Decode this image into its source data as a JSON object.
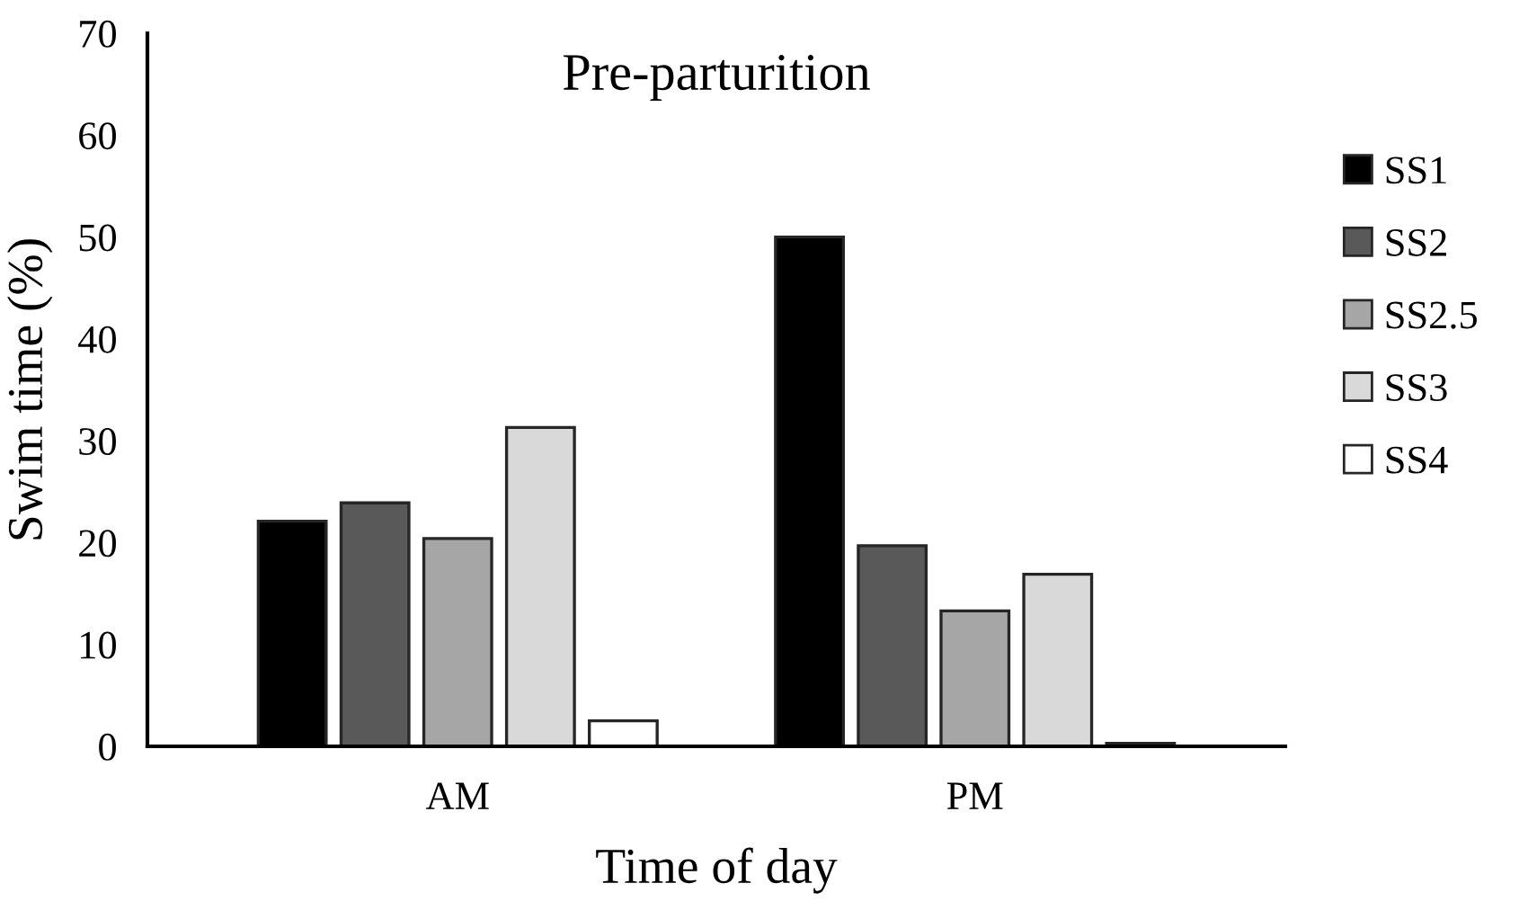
{
  "chart_data": {
    "type": "bar",
    "title": "Pre-parturition",
    "xlabel": "Time of day",
    "ylabel": "Swim time (%)",
    "categories": [
      "AM",
      "PM"
    ],
    "series": [
      {
        "name": "SS1",
        "color": "#000000",
        "values": [
          22.1,
          50
        ]
      },
      {
        "name": "SS2",
        "color": "#595959",
        "values": [
          23.9,
          19.7
        ]
      },
      {
        "name": "SS2.5",
        "color": "#a6a6a6",
        "values": [
          20.4,
          13.3
        ]
      },
      {
        "name": "SS3",
        "color": "#d9d9d9",
        "values": [
          31.3,
          16.9
        ]
      },
      {
        "name": "SS4",
        "color": "#ffffff",
        "values": [
          2.5,
          0.3
        ]
      }
    ],
    "ylim": [
      0,
      70
    ],
    "yticks": [
      0,
      10,
      20,
      30,
      40,
      50,
      60,
      70
    ],
    "grid": false,
    "legend": "right"
  }
}
